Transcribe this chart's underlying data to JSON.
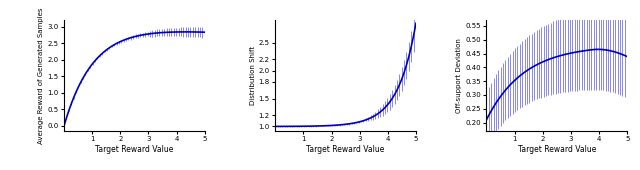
{
  "fig_width": 6.4,
  "fig_height": 1.7,
  "dpi": 100,
  "subplot1": {
    "ylabel": "Average Reward of Generated Samples",
    "xlabel": "Target Reward Value",
    "xlim": [
      0.0,
      5.0
    ],
    "ylim": [
      -0.15,
      3.2
    ],
    "yticks": [
      0.0,
      0.5,
      1.0,
      1.5,
      2.0,
      2.5,
      3.0
    ],
    "xticks": [
      1.0,
      2.0,
      3.0,
      4.0,
      5.0
    ],
    "line_color": "#0000bb",
    "err_color": "#5555dd",
    "err_alpha": 0.7
  },
  "subplot2": {
    "ylabel": "Distribution Shift",
    "xlabel": "Target Reward Value",
    "xlim": [
      0.0,
      5.0
    ],
    "ylim": [
      0.92,
      2.9
    ],
    "yticks": [
      1.0,
      1.2,
      1.5,
      1.8,
      2.0,
      2.2,
      2.5
    ],
    "xticks": [
      1.0,
      2.0,
      3.0,
      4.0,
      5.0
    ],
    "line_color": "#0000bb",
    "err_color": "#5555dd",
    "err_alpha": 0.7
  },
  "subplot3": {
    "ylabel": "Off-support Deviation",
    "xlabel": "Target Reward Value",
    "xlim": [
      0.0,
      5.0
    ],
    "ylim": [
      0.17,
      0.57
    ],
    "yticks": [
      0.2,
      0.25,
      0.3,
      0.35,
      0.4,
      0.45,
      0.5,
      0.55
    ],
    "xticks": [
      1.0,
      2.0,
      3.0,
      4.0,
      5.0
    ],
    "line_color": "#0000bb",
    "err_color": "#5555dd",
    "err_alpha": 0.7
  }
}
